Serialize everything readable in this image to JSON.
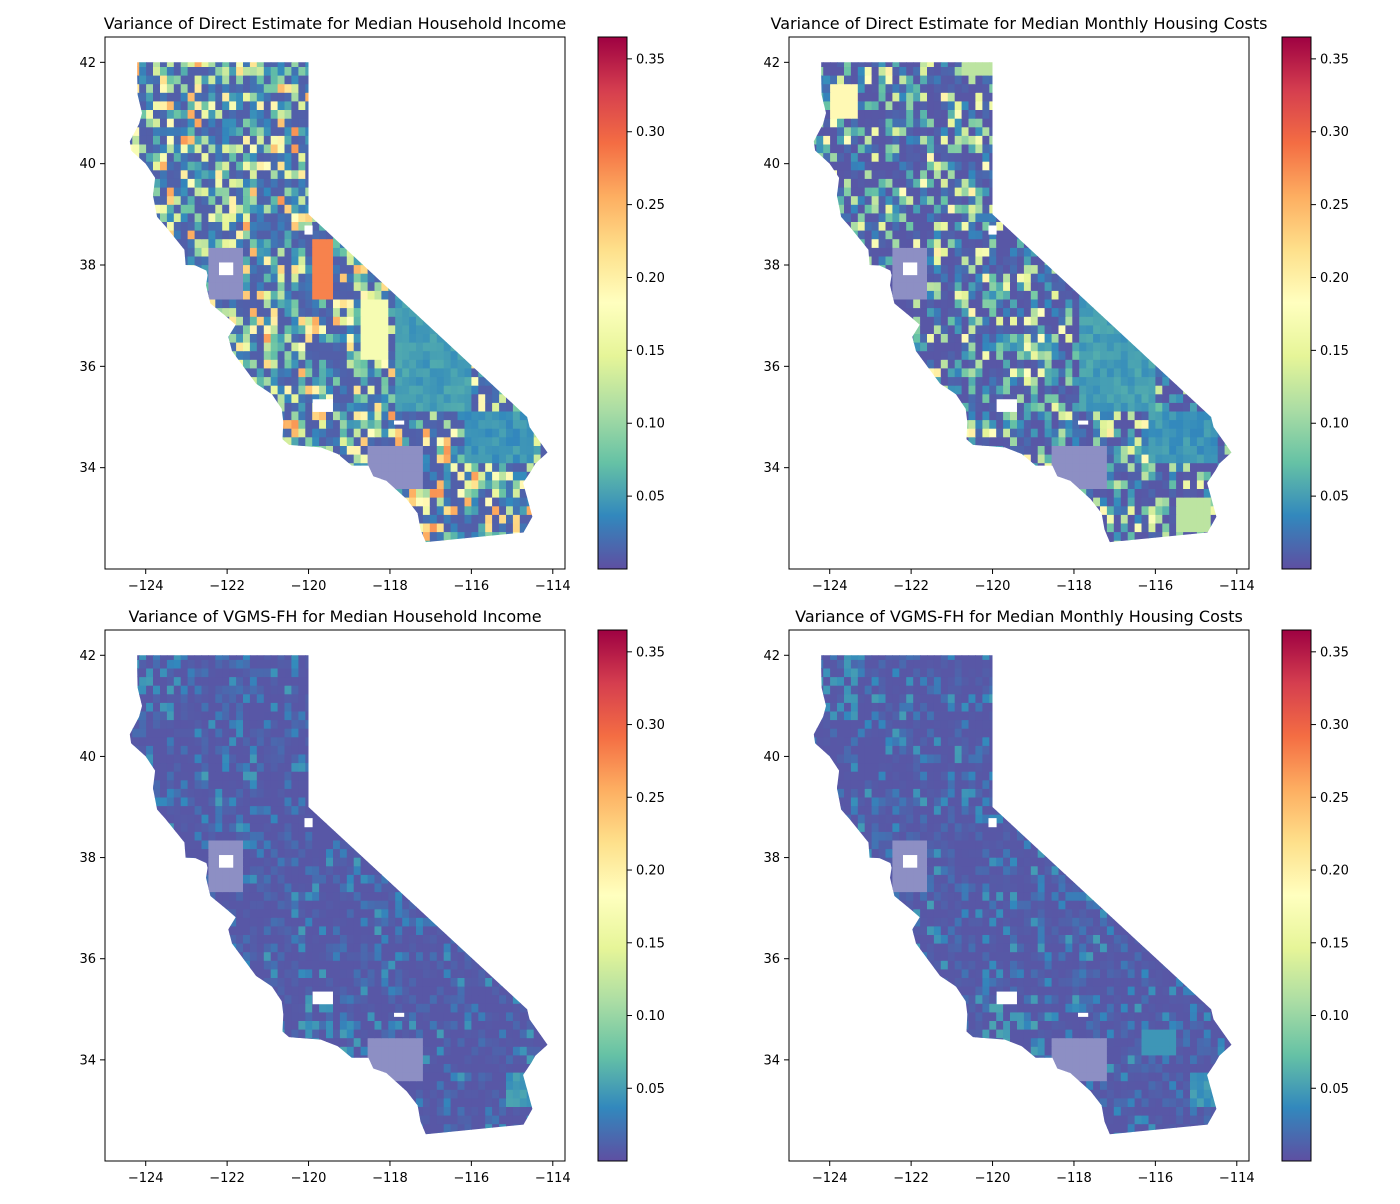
{
  "figure": {
    "panels": [
      {
        "title": "Variance of Direct Estimate for Median Household Income",
        "variant": "direct_income"
      },
      {
        "title": "Variance of Direct Estimate for Median Monthly Housing Costs",
        "variant": "direct_housing"
      },
      {
        "title": "Variance of VGMS-FH for Median Household Income",
        "variant": "vgms_income"
      },
      {
        "title": "Variance of VGMS-FH for Median Monthly Housing Costs",
        "variant": "vgms_housing"
      }
    ]
  },
  "chart_data": [
    {
      "type": "heatmap",
      "title": "Variance of Direct Estimate for Median Household Income",
      "xlim": [
        -125,
        -113.7
      ],
      "ylim": [
        32.0,
        42.5
      ],
      "xticks": [
        -124,
        -122,
        -120,
        -118,
        -116,
        -114
      ],
      "xtick_labels": [
        "−124",
        "−122",
        "−120",
        "−118",
        "−116",
        "−114"
      ],
      "yticks": [
        34,
        36,
        38,
        40,
        42
      ],
      "ytick_labels": [
        "34",
        "36",
        "38",
        "40",
        "42"
      ],
      "colorbar": {
        "cmap": "Spectral_r",
        "range": [
          0.0,
          0.365
        ],
        "ticks": [
          0.05,
          0.1,
          0.15,
          0.2,
          0.25,
          0.3,
          0.35
        ],
        "tick_labels": [
          "0.05",
          "0.10",
          "0.15",
          "0.20",
          "0.25",
          "0.30",
          "0.35"
        ]
      }
    },
    {
      "type": "heatmap",
      "title": "Variance of Direct Estimate for Median Monthly Housing Costs",
      "xlim": [
        -125,
        -113.7
      ],
      "ylim": [
        32.0,
        42.5
      ],
      "xticks": [
        -124,
        -122,
        -120,
        -118,
        -116,
        -114
      ],
      "xtick_labels": [
        "−124",
        "−122",
        "−120",
        "−118",
        "−116",
        "−114"
      ],
      "yticks": [
        34,
        36,
        38,
        40,
        42
      ],
      "ytick_labels": [
        "34",
        "36",
        "38",
        "40",
        "42"
      ],
      "colorbar": {
        "cmap": "Spectral_r",
        "range": [
          0.0,
          0.365
        ],
        "ticks": [
          0.05,
          0.1,
          0.15,
          0.2,
          0.25,
          0.3,
          0.35
        ],
        "tick_labels": [
          "0.05",
          "0.10",
          "0.15",
          "0.20",
          "0.25",
          "0.30",
          "0.35"
        ]
      }
    },
    {
      "type": "heatmap",
      "title": "Variance of VGMS-FH for Median Household Income",
      "xlim": [
        -125,
        -113.7
      ],
      "ylim": [
        32.0,
        42.5
      ],
      "xticks": [
        -124,
        -122,
        -120,
        -118,
        -116,
        -114
      ],
      "xtick_labels": [
        "−124",
        "−122",
        "−120",
        "−118",
        "−116",
        "−114"
      ],
      "yticks": [
        34,
        36,
        38,
        40,
        42
      ],
      "ytick_labels": [
        "34",
        "36",
        "38",
        "40",
        "42"
      ],
      "colorbar": {
        "cmap": "Spectral_r",
        "range": [
          0.0,
          0.365
        ],
        "ticks": [
          0.05,
          0.1,
          0.15,
          0.2,
          0.25,
          0.3,
          0.35
        ],
        "tick_labels": [
          "0.05",
          "0.10",
          "0.15",
          "0.20",
          "0.25",
          "0.30",
          "0.35"
        ]
      }
    },
    {
      "type": "heatmap",
      "title": "Variance of VGMS-FH for Median Monthly Housing Costs",
      "xlim": [
        -125,
        -113.7
      ],
      "ylim": [
        32.0,
        42.5
      ],
      "xticks": [
        -124,
        -122,
        -120,
        -118,
        -116,
        -114
      ],
      "xtick_labels": [
        "−124",
        "−122",
        "−120",
        "−118",
        "−116",
        "−114"
      ],
      "yticks": [
        34,
        36,
        38,
        40,
        42
      ],
      "ytick_labels": [
        "34",
        "36",
        "38",
        "40",
        "42"
      ],
      "colorbar": {
        "cmap": "Spectral_r",
        "range": [
          0.0,
          0.365
        ],
        "ticks": [
          0.05,
          0.1,
          0.15,
          0.2,
          0.25,
          0.3,
          0.35
        ],
        "tick_labels": [
          "0.05",
          "0.10",
          "0.15",
          "0.20",
          "0.25",
          "0.30",
          "0.35"
        ]
      }
    }
  ]
}
